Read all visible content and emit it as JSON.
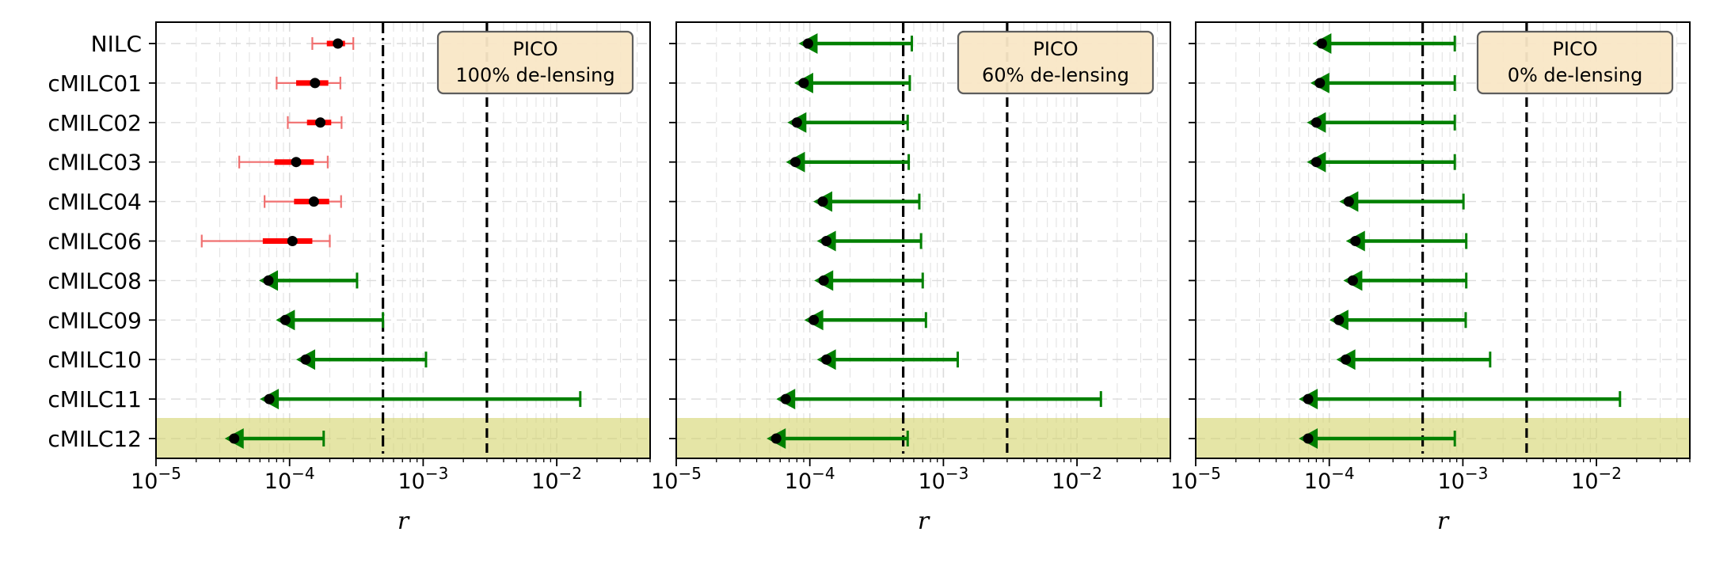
{
  "chart_data": [
    {
      "type": "scatter",
      "subtype": "horizontal-errorbar-with-upper-limits",
      "title": "",
      "annotation": [
        "PICO",
        "100% de-lensing"
      ],
      "xlabel": "r",
      "ylabel": "",
      "xscale": "log",
      "xlim": [
        1e-05,
        0.05
      ],
      "xticks": [
        1e-05,
        0.0001,
        0.001,
        0.01
      ],
      "xtick_labels": [
        [
          "10",
          "−5"
        ],
        [
          "10",
          "−4"
        ],
        [
          "10",
          "−3"
        ],
        [
          "10",
          "−2"
        ]
      ],
      "grid": true,
      "reference_lines": [
        {
          "x": 0.0005,
          "style": "dash-dot",
          "color": "#000000"
        },
        {
          "x": 0.003,
          "style": "dashed",
          "color": "#000000"
        }
      ],
      "highlighted_category": "cMILC12",
      "highlight_color": "#d4d46a",
      "categories": [
        "NILC",
        "cMILC01",
        "cMILC02",
        "cMILC03",
        "cMILC04",
        "cMILC06",
        "cMILC08",
        "cMILC09",
        "cMILC10",
        "cMILC11",
        "cMILC12"
      ],
      "detections": [
        {
          "name": "NILC",
          "center": 0.00023,
          "sigma1": [
            0.00019,
            0.00026
          ],
          "sigma2": [
            0.000148,
            0.0003
          ]
        },
        {
          "name": "cMILC01",
          "center": 0.000155,
          "sigma1": [
            0.000112,
            0.000195
          ],
          "sigma2": [
            8e-05,
            0.00024
          ]
        },
        {
          "name": "cMILC02",
          "center": 0.00017,
          "sigma1": [
            0.000135,
            0.000205
          ],
          "sigma2": [
            9.7e-05,
            0.000245
          ]
        },
        {
          "name": "cMILC03",
          "center": 0.000112,
          "sigma1": [
            7.7e-05,
            0.000152
          ],
          "sigma2": [
            4.2e-05,
            0.000193
          ]
        },
        {
          "name": "cMILC04",
          "center": 0.000152,
          "sigma1": [
            0.000108,
            0.000198
          ],
          "sigma2": [
            6.5e-05,
            0.000243
          ]
        },
        {
          "name": "cMILC06",
          "center": 0.000105,
          "sigma1": [
            6.3e-05,
            0.000148
          ],
          "sigma2": [
            2.2e-05,
            0.0002
          ]
        }
      ],
      "upper_limits": [
        {
          "name": "cMILC08",
          "best_fit": 6.95e-05,
          "upper": 0.00032
        },
        {
          "name": "cMILC09",
          "best_fit": 9.3e-05,
          "upper": 0.0005
        },
        {
          "name": "cMILC10",
          "best_fit": 0.000132,
          "upper": 0.00105
        },
        {
          "name": "cMILC11",
          "best_fit": 7.05e-05,
          "upper": 0.015
        },
        {
          "name": "cMILC12",
          "best_fit": 3.85e-05,
          "upper": 0.00018
        }
      ],
      "colors": {
        "detection": "#ff0000",
        "detection_2sigma": "#f07070",
        "upper_limit": "#008000",
        "point": "#000000"
      }
    },
    {
      "type": "scatter",
      "subtype": "horizontal-errorbar-with-upper-limits",
      "title": "",
      "annotation": [
        "PICO",
        "60% de-lensing"
      ],
      "xlabel": "r",
      "ylabel": "",
      "xscale": "log",
      "xlim": [
        1e-05,
        0.05
      ],
      "xticks": [
        1e-05,
        0.0001,
        0.001,
        0.01
      ],
      "xtick_labels": [
        [
          "10",
          "−5"
        ],
        [
          "10",
          "−4"
        ],
        [
          "10",
          "−3"
        ],
        [
          "10",
          "−2"
        ]
      ],
      "grid": true,
      "reference_lines": [
        {
          "x": 0.0005,
          "style": "dash-dot",
          "color": "#000000"
        },
        {
          "x": 0.003,
          "style": "dashed",
          "color": "#000000"
        }
      ],
      "highlighted_category": "cMILC12",
      "highlight_color": "#d4d46a",
      "categories": [
        "NILC",
        "cMILC01",
        "cMILC02",
        "cMILC03",
        "cMILC04",
        "cMILC06",
        "cMILC08",
        "cMILC09",
        "cMILC10",
        "cMILC11",
        "cMILC12"
      ],
      "detections": [],
      "upper_limits": [
        {
          "name": "NILC",
          "best_fit": 9.7e-05,
          "upper": 0.00058
        },
        {
          "name": "cMILC01",
          "best_fit": 9e-05,
          "upper": 0.00056
        },
        {
          "name": "cMILC02",
          "best_fit": 8e-05,
          "upper": 0.00054
        },
        {
          "name": "cMILC03",
          "best_fit": 7.8e-05,
          "upper": 0.00055
        },
        {
          "name": "cMILC04",
          "best_fit": 0.000125,
          "upper": 0.00066
        },
        {
          "name": "cMILC06",
          "best_fit": 0.000133,
          "upper": 0.00068
        },
        {
          "name": "cMILC08",
          "best_fit": 0.000127,
          "upper": 0.0007
        },
        {
          "name": "cMILC09",
          "best_fit": 0.000107,
          "upper": 0.00074
        },
        {
          "name": "cMILC10",
          "best_fit": 0.000133,
          "upper": 0.00128
        },
        {
          "name": "cMILC11",
          "best_fit": 6.6e-05,
          "upper": 0.0151
        },
        {
          "name": "cMILC12",
          "best_fit": 5.6e-05,
          "upper": 0.00054
        }
      ],
      "colors": {
        "detection": "#ff0000",
        "detection_2sigma": "#f07070",
        "upper_limit": "#008000",
        "point": "#000000"
      }
    },
    {
      "type": "scatter",
      "subtype": "horizontal-errorbar-with-upper-limits",
      "title": "",
      "annotation": [
        "PICO",
        "0% de-lensing"
      ],
      "xlabel": "r",
      "ylabel": "",
      "xscale": "log",
      "xlim": [
        1e-05,
        0.05
      ],
      "xticks": [
        1e-05,
        0.0001,
        0.001,
        0.01
      ],
      "xtick_labels": [
        [
          "10",
          "−5"
        ],
        [
          "10",
          "−4"
        ],
        [
          "10",
          "−3"
        ],
        [
          "10",
          "−2"
        ]
      ],
      "grid": true,
      "reference_lines": [
        {
          "x": 0.0005,
          "style": "dash-dot",
          "color": "#000000"
        },
        {
          "x": 0.003,
          "style": "dashed",
          "color": "#000000"
        }
      ],
      "highlighted_category": "cMILC12",
      "highlight_color": "#d4d46a",
      "categories": [
        "NILC",
        "cMILC01",
        "cMILC02",
        "cMILC03",
        "cMILC04",
        "cMILC06",
        "cMILC08",
        "cMILC09",
        "cMILC10",
        "cMILC11",
        "cMILC12"
      ],
      "detections": [],
      "upper_limits": [
        {
          "name": "NILC",
          "best_fit": 8.8e-05,
          "upper": 0.00087
        },
        {
          "name": "cMILC01",
          "best_fit": 8.5e-05,
          "upper": 0.00087
        },
        {
          "name": "cMILC02",
          "best_fit": 8e-05,
          "upper": 0.00087
        },
        {
          "name": "cMILC03",
          "best_fit": 8e-05,
          "upper": 0.00087
        },
        {
          "name": "cMILC04",
          "best_fit": 0.00014,
          "upper": 0.00101
        },
        {
          "name": "cMILC06",
          "best_fit": 0.000157,
          "upper": 0.00106
        },
        {
          "name": "cMILC08",
          "best_fit": 0.00015,
          "upper": 0.00106
        },
        {
          "name": "cMILC09",
          "best_fit": 0.000118,
          "upper": 0.00105
        },
        {
          "name": "cMILC10",
          "best_fit": 0.000133,
          "upper": 0.0016
        },
        {
          "name": "cMILC11",
          "best_fit": 6.95e-05,
          "upper": 0.015
        },
        {
          "name": "cMILC12",
          "best_fit": 6.95e-05,
          "upper": 0.00087
        }
      ],
      "colors": {
        "detection": "#ff0000",
        "detection_2sigma": "#f07070",
        "upper_limit": "#008000",
        "point": "#000000"
      }
    }
  ]
}
